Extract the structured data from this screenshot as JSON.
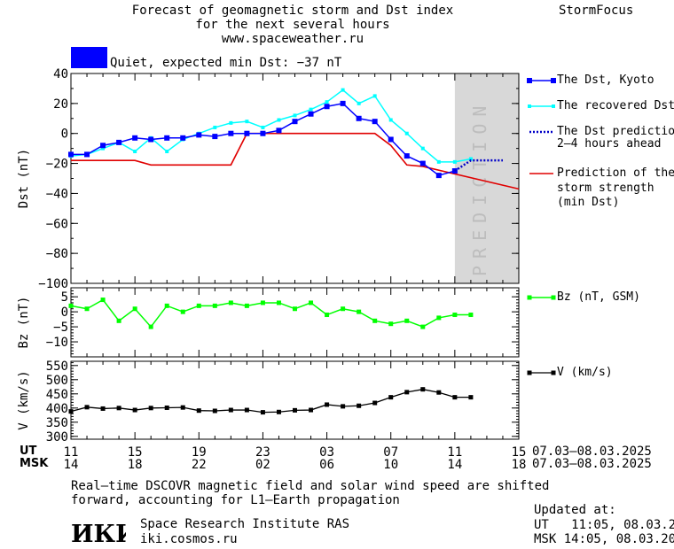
{
  "header": {
    "title_lines": [
      "Forecast of geomagnetic storm and Dst index",
      "for the next several hours",
      "www.spaceweather.ru"
    ],
    "brand": "StormFocus"
  },
  "status": {
    "label": "Quiet, expected min Dst: −37 nT",
    "color": "#0000ff"
  },
  "prediction_label": "PREDICTION",
  "axes": {
    "dst_ylabel": "Dst (nT)",
    "bz_ylabel": "Bz (nT)",
    "v_ylabel": "V (km/s)",
    "dst_ticks": [
      "40",
      "20",
      "0",
      "−20",
      "−40",
      "−60",
      "−80",
      "−100"
    ],
    "bz_ticks": [
      "5",
      "0",
      "−5",
      "−10"
    ],
    "v_ticks": [
      "550",
      "500",
      "450",
      "400",
      "350",
      "300"
    ]
  },
  "time_axis": {
    "ut_label": "UT",
    "msk_label": "MSK",
    "ut_ticks": [
      "11",
      "15",
      "19",
      "23",
      "03",
      "07",
      "11",
      "15"
    ],
    "msk_ticks": [
      "14",
      "18",
      "22",
      "02",
      "06",
      "10",
      "14",
      "18"
    ],
    "ut_range": "07.03–08.03.2025",
    "msk_range": "07.03–08.03.2025"
  },
  "legend": {
    "dst_kyoto": "The Dst, Kyoto",
    "dst_recovered": "The recovered Dst",
    "dst_prediction": [
      "The Dst prediction",
      "2–4 hours ahead"
    ],
    "storm_strength": [
      "Prediction of the",
      "storm strength",
      "(min Dst)"
    ],
    "bz": "Bz (nT, GSM)",
    "v": "V (km/s)"
  },
  "footer": {
    "note_lines": [
      "Real–time DSCOVR magnetic field and solar wind speed are shifted",
      "forward, accounting for L1–Earth propagation"
    ],
    "logo_text": "ИКИ",
    "institute": "Space Research Institute RAS",
    "site": "iki.cosmos.ru",
    "updated_label": "Updated at:",
    "updated_ut": "UT   11:05, 08.03.2025",
    "updated_msk": "MSK 14:05, 08.03.2025"
  },
  "colors": {
    "dst_kyoto": "#0000ff",
    "dst_recovered": "#00ffff",
    "dst_prediction": "#0000c8",
    "storm_strength": "#e00000",
    "bz": "#00ff00",
    "v": "#000000",
    "prediction_band": "#d8d8d8"
  },
  "chart_data": [
    {
      "type": "line",
      "title": "Forecast of geomagnetic storm and Dst index",
      "xlabel": "UT hours (07.03–08.03.2025)",
      "ylabel": "Dst (nT)",
      "xlim": [
        11,
        39
      ],
      "ylim": [
        -100,
        40
      ],
      "grid": false,
      "legend": "right",
      "series": [
        {
          "name": "The Dst, Kyoto",
          "x": [
            11,
            12,
            13,
            14,
            15,
            16,
            17,
            18,
            19,
            20,
            21,
            22,
            23,
            24,
            25,
            26,
            27,
            28,
            29,
            30,
            31,
            32,
            33,
            34,
            35
          ],
          "y": [
            -14,
            -14,
            -8,
            -6,
            -3,
            -4,
            -3,
            -3,
            -1,
            -2,
            0,
            0,
            0,
            2,
            8,
            13,
            18,
            20,
            10,
            8,
            -4,
            -15,
            -20,
            -28,
            -25
          ]
        },
        {
          "name": "The recovered Dst",
          "x": [
            11,
            12,
            13,
            14,
            15,
            16,
            17,
            18,
            19,
            20,
            21,
            22,
            23,
            24,
            25,
            26,
            27,
            28,
            29,
            30,
            31,
            32,
            33,
            34,
            35,
            36
          ],
          "y": [
            -15,
            -14,
            -10,
            -6,
            -12,
            -3,
            -12,
            -4,
            0,
            4,
            7,
            8,
            4,
            9,
            12,
            16,
            21,
            29,
            20,
            25,
            9,
            0,
            -10,
            -19,
            -19,
            -17
          ]
        },
        {
          "name": "The Dst prediction 2–4 hours ahead",
          "x": [
            35,
            36,
            37,
            38
          ],
          "y": [
            -25,
            -18,
            -18,
            -18
          ]
        },
        {
          "name": "Prediction of the storm strength (min Dst)",
          "x": [
            11,
            15,
            16,
            21,
            22,
            30,
            31,
            32,
            33,
            39
          ],
          "y": [
            -18,
            -18,
            -21,
            -21,
            0,
            0,
            -8,
            -21,
            -22,
            -37
          ]
        }
      ]
    },
    {
      "type": "line",
      "ylabel": "Bz (nT)",
      "ylim": [
        -15,
        8
      ],
      "series": [
        {
          "name": "Bz (nT, GSM)",
          "x": [
            11,
            12,
            13,
            14,
            15,
            16,
            17,
            18,
            19,
            20,
            21,
            22,
            23,
            24,
            25,
            26,
            27,
            28,
            29,
            30,
            31,
            32,
            33,
            34,
            35,
            36
          ],
          "y": [
            2,
            1,
            4,
            -3,
            1,
            -5,
            2,
            0,
            2,
            2,
            3,
            2,
            3,
            3,
            1,
            3,
            -1,
            1,
            0,
            -3,
            -4,
            -3,
            -5,
            -2,
            -1,
            -1
          ]
        }
      ]
    },
    {
      "type": "line",
      "ylabel": "V (km/s)",
      "ylim": [
        290,
        565
      ],
      "series": [
        {
          "name": "V (km/s)",
          "x": [
            11,
            12,
            13,
            14,
            15,
            16,
            17,
            18,
            19,
            20,
            21,
            22,
            23,
            24,
            25,
            26,
            27,
            28,
            29,
            30,
            31,
            32,
            33,
            34,
            35,
            36
          ],
          "y": [
            388,
            403,
            398,
            400,
            393,
            400,
            401,
            402,
            391,
            390,
            393,
            393,
            385,
            386,
            392,
            393,
            412,
            406,
            408,
            418,
            438,
            456,
            466,
            455,
            438,
            438
          ]
        }
      ]
    }
  ]
}
